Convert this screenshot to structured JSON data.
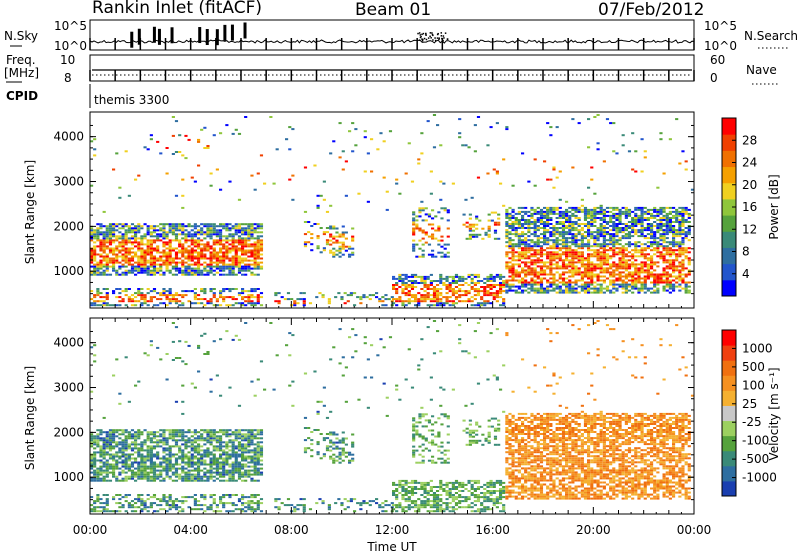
{
  "header": {
    "station": "Rankin Inlet (fitACF)",
    "beam": "Beam 01",
    "date": "07/Feb/2012"
  },
  "strips": {
    "nsky_label": "N.Sky",
    "nsky_ticks": [
      "10^5",
      "10^0"
    ],
    "nsearch_label": "N.Search",
    "nsearch_ticks": [
      "10^5",
      "10^0"
    ],
    "freq_label_1": "Freq.",
    "freq_label_2": "[MHz]",
    "freq_ticks": [
      "10",
      "8"
    ],
    "nave_label": "Nave",
    "nave_ticks": [
      "60",
      "0"
    ],
    "cpid_label": "CPID",
    "cpid_value": "themis 3300"
  },
  "chart_data": [
    {
      "type": "heatmap",
      "name": "power",
      "ylabel": "Slant Range [km]",
      "xlabel": "",
      "yticks": [
        "1000",
        "2000",
        "3000",
        "4000"
      ],
      "ylim": [
        180,
        4550
      ],
      "colorbar": {
        "label": "Power [dB]",
        "ticks": [
          "4",
          "8",
          "12",
          "16",
          "20",
          "24",
          "28"
        ],
        "colors": [
          "#0000ff",
          "#2255cc",
          "#2e6ea0",
          "#3a8a78",
          "#55a23c",
          "#8fc63b",
          "#f0d020",
          "#f5a000",
          "#f07000",
          "#f04000",
          "#ff0000"
        ]
      }
    },
    {
      "type": "heatmap",
      "name": "velocity",
      "ylabel": "Slant Range [km]",
      "xlabel": "Time UT",
      "yticks": [
        "1000",
        "2000",
        "3000",
        "4000"
      ],
      "ylim": [
        180,
        4550
      ],
      "xticks": [
        "00:00",
        "04:00",
        "08:00",
        "12:00",
        "16:00",
        "20:00",
        "00:00"
      ],
      "colorbar": {
        "label": "Velocity [m s⁻¹]",
        "ticks": [
          "1000",
          "500",
          "100",
          "25",
          "-25",
          "-100",
          "-500",
          "-1000"
        ],
        "colors": [
          "#1a3fb0",
          "#2e6ea0",
          "#3a8a78",
          "#55a23c",
          "#9cd060",
          "#c8c8c8",
          "#f5b030",
          "#f59020",
          "#f07010",
          "#f04010",
          "#ff0000"
        ]
      }
    }
  ]
}
